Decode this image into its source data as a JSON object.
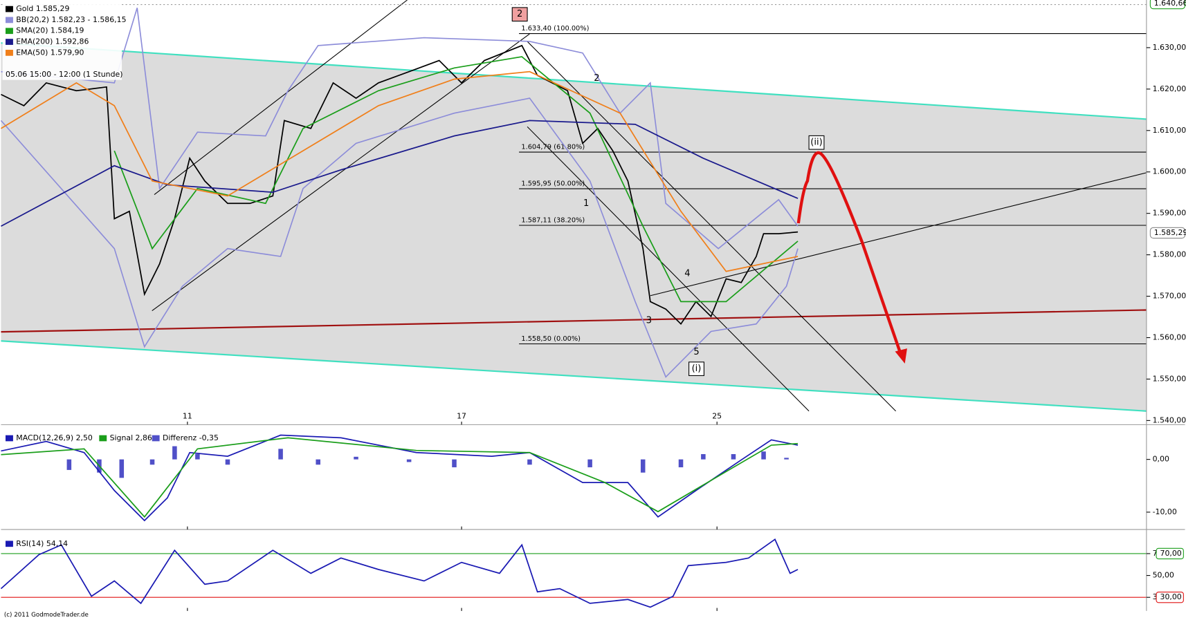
{
  "chart_data": [
    {
      "type": "line",
      "xlim": [
        0,
        25.07
      ],
      "xticks": [
        {
          "value": 4.08,
          "label": "11"
        },
        {
          "value": 10.08,
          "label": "17"
        },
        {
          "value": 15.67,
          "label": "25"
        }
      ],
      "ylim": [
        1539,
        1641.5
      ],
      "yticks": [
        {
          "value": 1630,
          "label": "1.630,00"
        },
        {
          "value": 1620,
          "label": "1.620,00"
        },
        {
          "value": 1610,
          "label": "1.610,00"
        },
        {
          "value": 1600,
          "label": "1.600,00"
        },
        {
          "value": 1590,
          "label": "1.590,00"
        },
        {
          "value": 1580,
          "label": "1.580,00"
        },
        {
          "value": 1570,
          "label": "1.570,00"
        },
        {
          "value": 1560,
          "label": "1.560,00"
        },
        {
          "value": 1550,
          "label": "1.550,00"
        },
        {
          "value": 1540,
          "label": "1.540,00"
        }
      ],
      "price_markers": [
        {
          "value": 1640.66,
          "label": "1.640,66"
        },
        {
          "value": 1585.29,
          "label": "1.585,29"
        }
      ],
      "series": [
        {
          "name": "Gold 1.585,29",
          "color": "#000000",
          "x": [
            0,
            0.5,
            0.99,
            1.65,
            2.31,
            2.48,
            2.81,
            3.14,
            3.47,
            3.8,
            4.13,
            4.46,
            4.96,
            5.45,
            5.95,
            6.2,
            6.78,
            7.27,
            7.77,
            8.26,
            8.93,
            9.59,
            10.08,
            10.58,
            11.4,
            11.74,
            12.4,
            12.73,
            13.06,
            13.39,
            13.72,
            14.05,
            14.21,
            14.55,
            14.88,
            15.21,
            15.54,
            15.87,
            16.2,
            16.53,
            16.69,
            17.02,
            17.44
          ],
          "values": [
            1618.7,
            1616,
            1621.5,
            1619.6,
            1620.5,
            1588.7,
            1590.5,
            1570.5,
            1577.8,
            1588.7,
            1603.3,
            1597.8,
            1592.4,
            1592.4,
            1594.2,
            1612.4,
            1610.5,
            1621.5,
            1617.8,
            1621.5,
            1624.2,
            1626.9,
            1621.5,
            1626.9,
            1630.5,
            1623.3,
            1619.6,
            1606.9,
            1610.5,
            1605.1,
            1597.8,
            1581.5,
            1568.7,
            1566.9,
            1563.3,
            1568.7,
            1565.1,
            1574.2,
            1573.3,
            1579.6,
            1585.1,
            1585.1,
            1585.5
          ]
        },
        {
          "name": "BB(20,2) 1.582,23 - 1.586,15",
          "color": "#8c8cd9",
          "x": [
            0,
            2.48,
            2.98,
            3.47,
            4.3,
            5.79,
            6.28,
            6.94,
            9.26,
            11.57,
            12.73,
            13.55,
            14.21,
            14.55,
            15.7,
            17.02,
            17.44
          ],
          "values": [
            1624.2,
            1621.5,
            1639.6,
            1596,
            1609.6,
            1608.7,
            1619.6,
            1630.5,
            1632.4,
            1631.5,
            1628.7,
            1614.2,
            1621.5,
            1592.4,
            1581.5,
            1593.3,
            1586.9
          ],
          "lower_x": [
            0,
            2.48,
            3.14,
            3.97,
            4.96,
            6.12,
            6.61,
            7.77,
            9.92,
            11.57,
            12.89,
            13.88,
            14.55,
            15.54,
            16.53,
            17.19,
            17.44
          ],
          "lower": [
            1612.4,
            1581.5,
            1557.8,
            1572.4,
            1581.5,
            1579.6,
            1596,
            1606.9,
            1614.2,
            1617.8,
            1597.8,
            1568.7,
            1550.5,
            1561.5,
            1563.3,
            1572.4,
            1581.5
          ]
        },
        {
          "name": "SMA(20) 1.584,19",
          "color": "#1a9e1a",
          "x": [
            2.48,
            3.31,
            4.3,
            5.79,
            6.61,
            8.26,
            9.92,
            11.4,
            12.89,
            14.05,
            14.88,
            15.87,
            17.44
          ],
          "values": [
            1605.1,
            1581.5,
            1596,
            1592.4,
            1610.5,
            1619.6,
            1625.1,
            1627.8,
            1614.2,
            1586.9,
            1568.7,
            1568.7,
            1583.3
          ]
        },
        {
          "name": "EMA(200) 1.592,86",
          "color": "#1a1a8c",
          "x": [
            0,
            2.48,
            3.64,
            5.95,
            7.44,
            9.92,
            11.57,
            13.88,
            15.37,
            17.44
          ],
          "values": [
            1586.9,
            1601.5,
            1596.9,
            1595.1,
            1600.5,
            1608.7,
            1612.4,
            1611.5,
            1603.3,
            1593.6
          ]
        },
        {
          "name": "EMA(50) 1.579,90",
          "color": "#f07f1a",
          "x": [
            0,
            1.65,
            2.48,
            3.31,
            4.96,
            6.61,
            8.26,
            9.92,
            11.57,
            13.55,
            14.88,
            15.87,
            17.44
          ],
          "values": [
            1610.5,
            1621.5,
            1616,
            1597.8,
            1594.2,
            1605.1,
            1616,
            1622.4,
            1624.2,
            1614.2,
            1590.5,
            1576,
            1579.6
          ]
        }
      ],
      "fib_levels": [
        {
          "value": 1633.4,
          "label": "1.633,40 (100.00%)"
        },
        {
          "value": 1604.79,
          "label": "1.604,79 (61.80%)"
        },
        {
          "value": 1595.95,
          "label": "1.595,95 (50.00%)"
        },
        {
          "value": 1587.11,
          "label": "1.587,11 (38.20%)"
        },
        {
          "value": 1558.5,
          "label": "1.558,50 (0.00%)"
        }
      ],
      "period": "05.06 15:00 - 12:00 (1 Stunde)",
      "waves": [
        "2",
        "1",
        "2",
        "3",
        "4",
        "5",
        "(i)",
        "(ii)"
      ]
    },
    {
      "type": "line",
      "ylim": [
        -13,
        6.3
      ],
      "yticks": [
        {
          "value": 0,
          "label": "0,00"
        },
        {
          "value": -10,
          "label": "-10,00"
        }
      ],
      "series": [
        {
          "name": "MACD(12,26,9) 2,50",
          "color": "#1a1ab3",
          "x": [
            0,
            0.99,
            1.82,
            2.48,
            3.14,
            3.64,
            4.13,
            4.96,
            6.12,
            7.44,
            9.09,
            10.74,
            11.57,
            12.73,
            13.72,
            14.38,
            15.21,
            16.2,
            16.86,
            17.44
          ],
          "values": [
            1.6,
            3.4,
            1.3,
            -5.9,
            -11.6,
            -7.3,
            1.3,
            0.6,
            4.6,
            4.1,
            1.3,
            0.6,
            1.3,
            -4.4,
            -4.4,
            -10.9,
            -5.9,
            -0.1,
            3.7,
            2.7
          ]
        },
        {
          "name": "Signal 2,86",
          "color": "#1a9e1a",
          "x": [
            0,
            1.82,
            3.14,
            4.3,
            6.28,
            9.09,
            11.57,
            13.22,
            14.38,
            15.87,
            16.86,
            17.44
          ],
          "values": [
            0.9,
            2,
            -10.9,
            2,
            4.1,
            1.7,
            1.3,
            -4.4,
            -9.9,
            -2.3,
            2.7,
            3
          ]
        }
      ],
      "histogram": {
        "name": "Differenz -0,35",
        "color": "#5050c8",
        "x": [
          1.49,
          2.15,
          2.64,
          3.31,
          3.8,
          4.3,
          4.96,
          6.12,
          6.94,
          7.77,
          8.93,
          9.92,
          11.57,
          12.89,
          14.05,
          14.88,
          15.37,
          16.03,
          16.69,
          17.19
        ],
        "values": [
          -2,
          -2.5,
          -3.5,
          -1,
          2.5,
          1,
          -1,
          2,
          -1,
          0.5,
          -0.5,
          -1.5,
          -1,
          -1.5,
          -2.5,
          -1.5,
          1,
          1,
          1.5,
          0.3
        ]
      }
    },
    {
      "type": "line",
      "ylim": [
        20.3,
        90
      ],
      "yticks": [
        {
          "value": 70,
          "label": "70,00"
        },
        {
          "value": 50,
          "label": "50,00"
        },
        {
          "value": 30,
          "label": "30,00"
        }
      ],
      "series": [
        {
          "name": "RSI(14) 54,14",
          "color": "#1a1ab3",
          "x": [
            0,
            0.83,
            1.32,
            1.98,
            2.48,
            3.06,
            3.8,
            4.46,
            4.96,
            5.95,
            6.78,
            7.44,
            8.26,
            9.26,
            10.08,
            10.91,
            11.4,
            11.74,
            12.23,
            12.89,
            13.72,
            14.21,
            14.71,
            15.04,
            15.87,
            16.36,
            16.94,
            17.27,
            17.44
          ],
          "values": [
            38,
            69,
            78,
            31,
            45,
            24.5,
            73,
            42,
            45,
            73,
            52,
            66,
            55.5,
            45,
            62,
            52,
            78,
            35,
            38,
            24.5,
            28,
            21,
            31,
            59,
            62,
            66,
            83,
            52,
            55.5
          ]
        }
      ]
    },
    {
      "copyright": "(c) 2011 GodmodeTrader.de"
    }
  ]
}
